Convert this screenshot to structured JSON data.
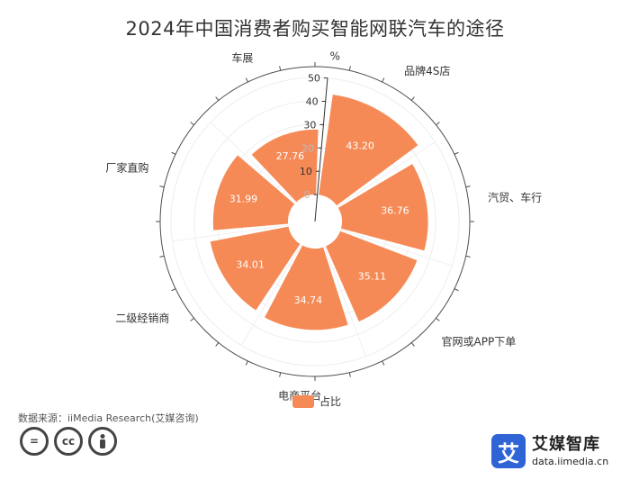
{
  "header": {
    "title": "2024年中国消费者购买智能网联汽车的途径"
  },
  "legend": {
    "label": "占比",
    "color": "#F58A56"
  },
  "footer": {
    "source": "数据来源：iiMedia Research(艾媒咨询)",
    "licenses": [
      "equals-icon",
      "cc-icon",
      "person-icon"
    ]
  },
  "logo": {
    "badge": "艾",
    "name": "艾媒智库",
    "url": "data.iimedia.cn"
  },
  "chart_data": {
    "type": "polar-bar",
    "unit": "%",
    "radial_ticks": [
      0,
      10,
      20,
      30,
      40,
      50
    ],
    "rlim": [
      0,
      50
    ],
    "categories": [
      "品牌4S店",
      "汽贸、车行",
      "官网或APP下单",
      "电商平台",
      "二级经销商",
      "厂家直购",
      "车展"
    ],
    "series": [
      {
        "name": "占比",
        "values": [
          43.2,
          36.76,
          35.11,
          34.74,
          34.01,
          31.99,
          27.76
        ]
      }
    ],
    "legend_position": "bottom",
    "bar_color": "#F58A56"
  }
}
